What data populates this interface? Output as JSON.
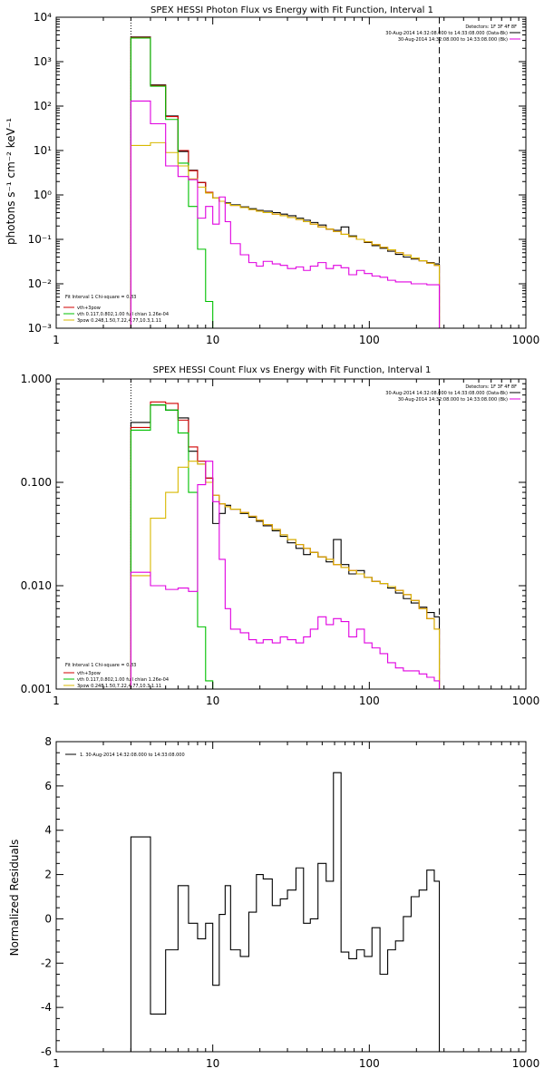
{
  "chart_data": [
    {
      "type": "line",
      "title": "SPEX HESSI Photon Flux vs Energy with Fit Function, Interval 1",
      "ylabel": "photons s⁻¹ cm⁻² keV⁻¹",
      "xlabel": "",
      "xscale": "log",
      "yscale": "log",
      "xlim": [
        1,
        1000
      ],
      "ylim": [
        0.001,
        10000
      ],
      "x_ticks": [
        "1",
        "10",
        "100",
        "1000"
      ],
      "y_ticks": [
        "10⁻³",
        "10⁻²",
        "10⁻¹",
        "10⁰",
        "10¹",
        "10²",
        "10³",
        "10⁴"
      ],
      "header_lines": [
        "Detectors: 1F 3F 4F 8F",
        "30-Aug-2014 14:32:08.000 to 14:33:08.000 (Data-Bk)",
        "30-Aug-2014 14:32:08.000 to 14:33:08.000 (Bk)"
      ],
      "legend": [
        "Fit Interval 1    Chi-square = 0.83",
        "vth+3pow",
        "vth 0.117,0.802,1.00  full chian 1.26e-04",
        "3pow 0.248,1.50,7.22,4.77,10.3,1.11"
      ],
      "vlines": [
        3,
        280
      ],
      "series": [
        {
          "role": "data",
          "color": "#000000",
          "edges": [
            3,
            4,
            5,
            6,
            7,
            8,
            9,
            10,
            11,
            12,
            13,
            15,
            17,
            19,
            21,
            24,
            27,
            30,
            34,
            38,
            42,
            47,
            53,
            59,
            66,
            74,
            83,
            93,
            104,
            117,
            131,
            147,
            165,
            185,
            208,
            233,
            260,
            280
          ],
          "values": [
            3600,
            300,
            60,
            9.5,
            3.6,
            1.9,
            1.15,
            0.85,
            0.72,
            0.66,
            0.6,
            0.54,
            0.49,
            0.45,
            0.43,
            0.4,
            0.37,
            0.34,
            0.3,
            0.27,
            0.24,
            0.21,
            0.17,
            0.16,
            0.19,
            0.12,
            0.1,
            0.085,
            0.072,
            0.063,
            0.054,
            0.046,
            0.04,
            0.036,
            0.033,
            0.03,
            0.028
          ]
        },
        {
          "role": "total-fit",
          "color": "#d00000",
          "edges": [
            3,
            4,
            5,
            6,
            7,
            8,
            9,
            10,
            11,
            12,
            13,
            15,
            17,
            19,
            21,
            24,
            27,
            30,
            34,
            38,
            42,
            47,
            53,
            59,
            66,
            74,
            83,
            93,
            104,
            117,
            131,
            147,
            165,
            185,
            208,
            233,
            260,
            280
          ],
          "values": [
            3500,
            290,
            58,
            10,
            3.5,
            1.9,
            1.15,
            0.85,
            0.72,
            0.64,
            0.58,
            0.52,
            0.47,
            0.43,
            0.4,
            0.37,
            0.34,
            0.31,
            0.28,
            0.25,
            0.22,
            0.19,
            0.17,
            0.15,
            0.13,
            0.115,
            0.1,
            0.088,
            0.076,
            0.066,
            0.058,
            0.05,
            0.044,
            0.038,
            0.033,
            0.029,
            0.026
          ]
        },
        {
          "role": "thermal",
          "color": "#00c000",
          "edges": [
            3,
            4,
            5,
            6,
            7,
            8,
            9,
            10
          ],
          "values": [
            3400,
            280,
            50,
            5.2,
            0.55,
            0.06,
            0.004
          ]
        },
        {
          "role": "power-law",
          "color": "#d8b800",
          "edges": [
            3,
            4,
            5,
            6,
            7,
            8,
            9,
            10,
            11,
            12,
            13,
            15,
            17,
            19,
            21,
            24,
            27,
            30,
            34,
            38,
            42,
            47,
            53,
            59,
            66,
            74,
            83,
            93,
            104,
            117,
            131,
            147,
            165,
            185,
            208,
            233,
            260,
            280
          ],
          "values": [
            13,
            15,
            9,
            4.5,
            2.3,
            1.5,
            1.1,
            0.85,
            0.72,
            0.64,
            0.58,
            0.52,
            0.47,
            0.43,
            0.4,
            0.37,
            0.34,
            0.31,
            0.28,
            0.25,
            0.22,
            0.19,
            0.17,
            0.15,
            0.13,
            0.115,
            0.1,
            0.088,
            0.076,
            0.066,
            0.058,
            0.05,
            0.044,
            0.038,
            0.033,
            0.029,
            0.026
          ]
        },
        {
          "role": "background",
          "color": "#e000e0",
          "edges": [
            3,
            4,
            5,
            6,
            7,
            8,
            9,
            10,
            11,
            12,
            13,
            15,
            17,
            19,
            21,
            24,
            27,
            30,
            34,
            38,
            42,
            47,
            53,
            59,
            66,
            74,
            83,
            93,
            104,
            117,
            131,
            147,
            165,
            185,
            208,
            233,
            260,
            280
          ],
          "values": [
            130,
            40,
            4.5,
            2.6,
            2.2,
            0.3,
            0.55,
            0.22,
            0.9,
            0.25,
            0.08,
            0.045,
            0.03,
            0.025,
            0.032,
            0.028,
            0.026,
            0.022,
            0.024,
            0.02,
            0.025,
            0.03,
            0.022,
            0.026,
            0.023,
            0.016,
            0.02,
            0.017,
            0.015,
            0.014,
            0.012,
            0.011,
            0.011,
            0.01,
            0.01,
            0.0095,
            0.0095
          ]
        }
      ]
    },
    {
      "type": "line",
      "title": "SPEX HESSI Count Flux vs Energy with Fit Function, Interval 1",
      "ylabel": "",
      "xlabel": "",
      "xscale": "log",
      "yscale": "log",
      "xlim": [
        1,
        1000
      ],
      "ylim": [
        0.001,
        1.0
      ],
      "x_ticks": [
        "1",
        "10",
        "100",
        "1000"
      ],
      "y_ticks": [
        "0.001",
        "0.010",
        "0.100",
        "1.000"
      ],
      "header_lines": [
        "Detectors: 1F 3F 4F 8F",
        "30-Aug-2014 14:32:08.000 to 14:33:08.000 (Data-Bk)",
        "30-Aug-2014 14:32:08.000 to 14:33:08.000 (Bk)"
      ],
      "legend": [
        "Fit Interval 1    Chi-square = 0.83",
        "vth+3pow",
        "vth 0.117,0.802,1.00  full chian 1.26e-04",
        "3pow 0.248,1.50,7.22,4.77,10.3,1.11"
      ],
      "vlines": [
        3,
        280
      ],
      "series": [
        {
          "role": "data",
          "color": "#000000",
          "edges": [
            3,
            4,
            5,
            6,
            7,
            8,
            9,
            10,
            11,
            12,
            13,
            15,
            17,
            19,
            21,
            24,
            27,
            30,
            34,
            38,
            42,
            47,
            53,
            59,
            66,
            74,
            83,
            93,
            104,
            117,
            131,
            147,
            165,
            185,
            208,
            233,
            260,
            280
          ],
          "values": [
            0.38,
            0.56,
            0.5,
            0.42,
            0.2,
            0.15,
            0.11,
            0.04,
            0.05,
            0.06,
            0.055,
            0.05,
            0.046,
            0.042,
            0.038,
            0.034,
            0.03,
            0.026,
            0.023,
            0.02,
            0.021,
            0.019,
            0.017,
            0.028,
            0.016,
            0.013,
            0.014,
            0.012,
            0.011,
            0.0105,
            0.0095,
            0.0085,
            0.0075,
            0.0068,
            0.0062,
            0.0055,
            0.005
          ]
        },
        {
          "role": "total-fit",
          "color": "#d00000",
          "edges": [
            3,
            4,
            5,
            6,
            7,
            8,
            9,
            10,
            11,
            12,
            13,
            15,
            17,
            19,
            21,
            24,
            27,
            30,
            34,
            38,
            42,
            47,
            53,
            59,
            66,
            74,
            83,
            93,
            104,
            117,
            131,
            147,
            165,
            185,
            208,
            233,
            260,
            280
          ],
          "values": [
            0.34,
            0.6,
            0.58,
            0.4,
            0.22,
            0.16,
            0.11,
            0.075,
            0.062,
            0.058,
            0.055,
            0.051,
            0.047,
            0.043,
            0.039,
            0.035,
            0.031,
            0.028,
            0.025,
            0.023,
            0.021,
            0.019,
            0.018,
            0.016,
            0.015,
            0.014,
            0.013,
            0.012,
            0.011,
            0.0105,
            0.0098,
            0.009,
            0.0082,
            0.0072,
            0.006,
            0.0048,
            0.0038
          ]
        },
        {
          "role": "thermal",
          "color": "#00c000",
          "edges": [
            3,
            4,
            5,
            6,
            7,
            8,
            9,
            10
          ],
          "values": [
            0.32,
            0.56,
            0.5,
            0.3,
            0.08,
            0.004,
            0.0012
          ]
        },
        {
          "role": "power-law",
          "color": "#d8b800",
          "edges": [
            3,
            4,
            5,
            6,
            7,
            8,
            9,
            10,
            11,
            12,
            13,
            15,
            17,
            19,
            21,
            24,
            27,
            30,
            34,
            38,
            42,
            47,
            53,
            59,
            66,
            74,
            83,
            93,
            104,
            117,
            131,
            147,
            165,
            185,
            208,
            233,
            260,
            280
          ],
          "values": [
            0.0125,
            0.045,
            0.08,
            0.14,
            0.16,
            0.15,
            0.1,
            0.075,
            0.062,
            0.058,
            0.055,
            0.051,
            0.047,
            0.043,
            0.039,
            0.035,
            0.031,
            0.028,
            0.025,
            0.023,
            0.021,
            0.019,
            0.018,
            0.016,
            0.015,
            0.014,
            0.013,
            0.012,
            0.011,
            0.0105,
            0.0098,
            0.009,
            0.0082,
            0.0072,
            0.006,
            0.0048,
            0.0038
          ]
        },
        {
          "role": "background",
          "color": "#e000e0",
          "edges": [
            3,
            4,
            5,
            6,
            7,
            8,
            9,
            10,
            11,
            12,
            13,
            15,
            17,
            19,
            21,
            24,
            27,
            30,
            34,
            38,
            42,
            47,
            53,
            59,
            66,
            74,
            83,
            93,
            104,
            117,
            131,
            147,
            165,
            185,
            208,
            233,
            260,
            280
          ],
          "values": [
            0.0135,
            0.01,
            0.0092,
            0.0095,
            0.0088,
            0.095,
            0.16,
            0.065,
            0.018,
            0.006,
            0.0038,
            0.0035,
            0.003,
            0.0028,
            0.003,
            0.0028,
            0.0032,
            0.003,
            0.0028,
            0.0032,
            0.0038,
            0.005,
            0.0042,
            0.0048,
            0.0045,
            0.0032,
            0.0038,
            0.0028,
            0.0025,
            0.0022,
            0.0018,
            0.0016,
            0.0015,
            0.0015,
            0.0014,
            0.0013,
            0.0012
          ]
        }
      ]
    },
    {
      "type": "line",
      "title": "",
      "ylabel": "Normalized Residuals",
      "xlabel": "",
      "xscale": "log",
      "yscale": "linear",
      "xlim": [
        1,
        1000
      ],
      "ylim": [
        -6,
        8
      ],
      "x_ticks": [
        "1",
        "10",
        "100",
        "1000"
      ],
      "y_ticks": [
        "-6",
        "-4",
        "-2",
        "0",
        "2",
        "4",
        "6",
        "8"
      ],
      "legend": [
        "1. 30-Aug-2014 14:32:08.000 to 14:33:08.000"
      ],
      "series": [
        {
          "role": "residuals",
          "color": "#000000",
          "edges": [
            3,
            4,
            5,
            6,
            7,
            8,
            9,
            10,
            11,
            12,
            13,
            15,
            17,
            19,
            21,
            24,
            27,
            30,
            34,
            38,
            42,
            47,
            53,
            59,
            66,
            74,
            83,
            93,
            104,
            117,
            131,
            147,
            165,
            185,
            208,
            233,
            260,
            280
          ],
          "values": [
            3.7,
            -4.3,
            -1.4,
            1.5,
            -0.2,
            -0.9,
            -0.2,
            -3.0,
            0.2,
            1.5,
            -1.4,
            -1.7,
            0.3,
            2.0,
            1.8,
            0.6,
            0.9,
            1.3,
            2.3,
            -0.2,
            0.0,
            2.5,
            1.7,
            6.6,
            -1.5,
            -1.8,
            -1.4,
            -1.7,
            -0.4,
            -2.5,
            -1.4,
            -1.0,
            0.1,
            1.0,
            1.3,
            2.2,
            1.7
          ]
        }
      ]
    }
  ]
}
